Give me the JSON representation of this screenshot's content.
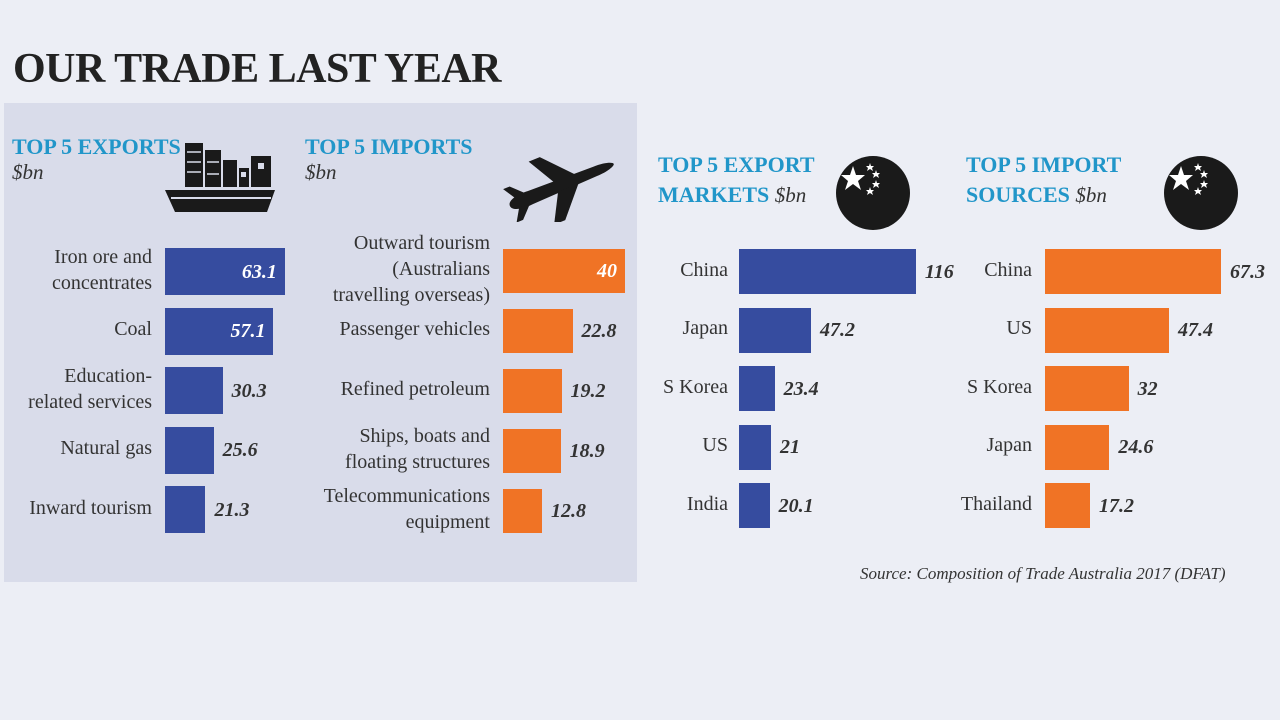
{
  "title": "OUR TRADE LAST YEAR",
  "source": "Source: Composition of Trade Australia 2017 (DFAT)",
  "colors": {
    "blue": "#364c9f",
    "orange": "#f07325",
    "title_blue": "#2196c9"
  },
  "icons": {
    "exports": "cargo-ship-icon",
    "imports": "airplane-icon",
    "markets": "china-flag-icon",
    "sources": "china-flag-icon"
  },
  "chart_data": [
    {
      "type": "bar",
      "title": "TOP 5 EXPORTS",
      "unit": "$bn",
      "categories": [
        "Iron ore and\nconcentrates",
        "Coal",
        "Education-\nrelated services",
        "Natural gas",
        "Inward tourism"
      ],
      "values": [
        63.1,
        57.1,
        30.3,
        25.6,
        21.3
      ],
      "color": "#364c9f"
    },
    {
      "type": "bar",
      "title": "TOP 5 IMPORTS",
      "unit": "$bn",
      "categories": [
        "Outward tourism\n(Australians\ntravelling overseas)",
        "Passenger vehicles",
        "Refined petroleum",
        "Ships, boats and\nfloating structures",
        "Telecommunications\nequipment"
      ],
      "values": [
        40,
        22.8,
        19.2,
        18.9,
        12.8
      ],
      "color": "#f07325"
    },
    {
      "type": "bar",
      "title": "TOP 5 EXPORT\nMARKETS",
      "unit": "$bn",
      "categories": [
        "China",
        "Japan",
        "S Korea",
        "US",
        "India"
      ],
      "values": [
        116,
        47.2,
        23.4,
        21,
        20.1
      ],
      "color": "#364c9f"
    },
    {
      "type": "bar",
      "title": "TOP 5 IMPORT\nSOURCES",
      "unit": "$bn",
      "categories": [
        "China",
        "US",
        "S Korea",
        "Japan",
        "Thailand"
      ],
      "values": [
        67.3,
        47.4,
        32,
        24.6,
        17.2
      ],
      "color": "#f07325"
    }
  ]
}
